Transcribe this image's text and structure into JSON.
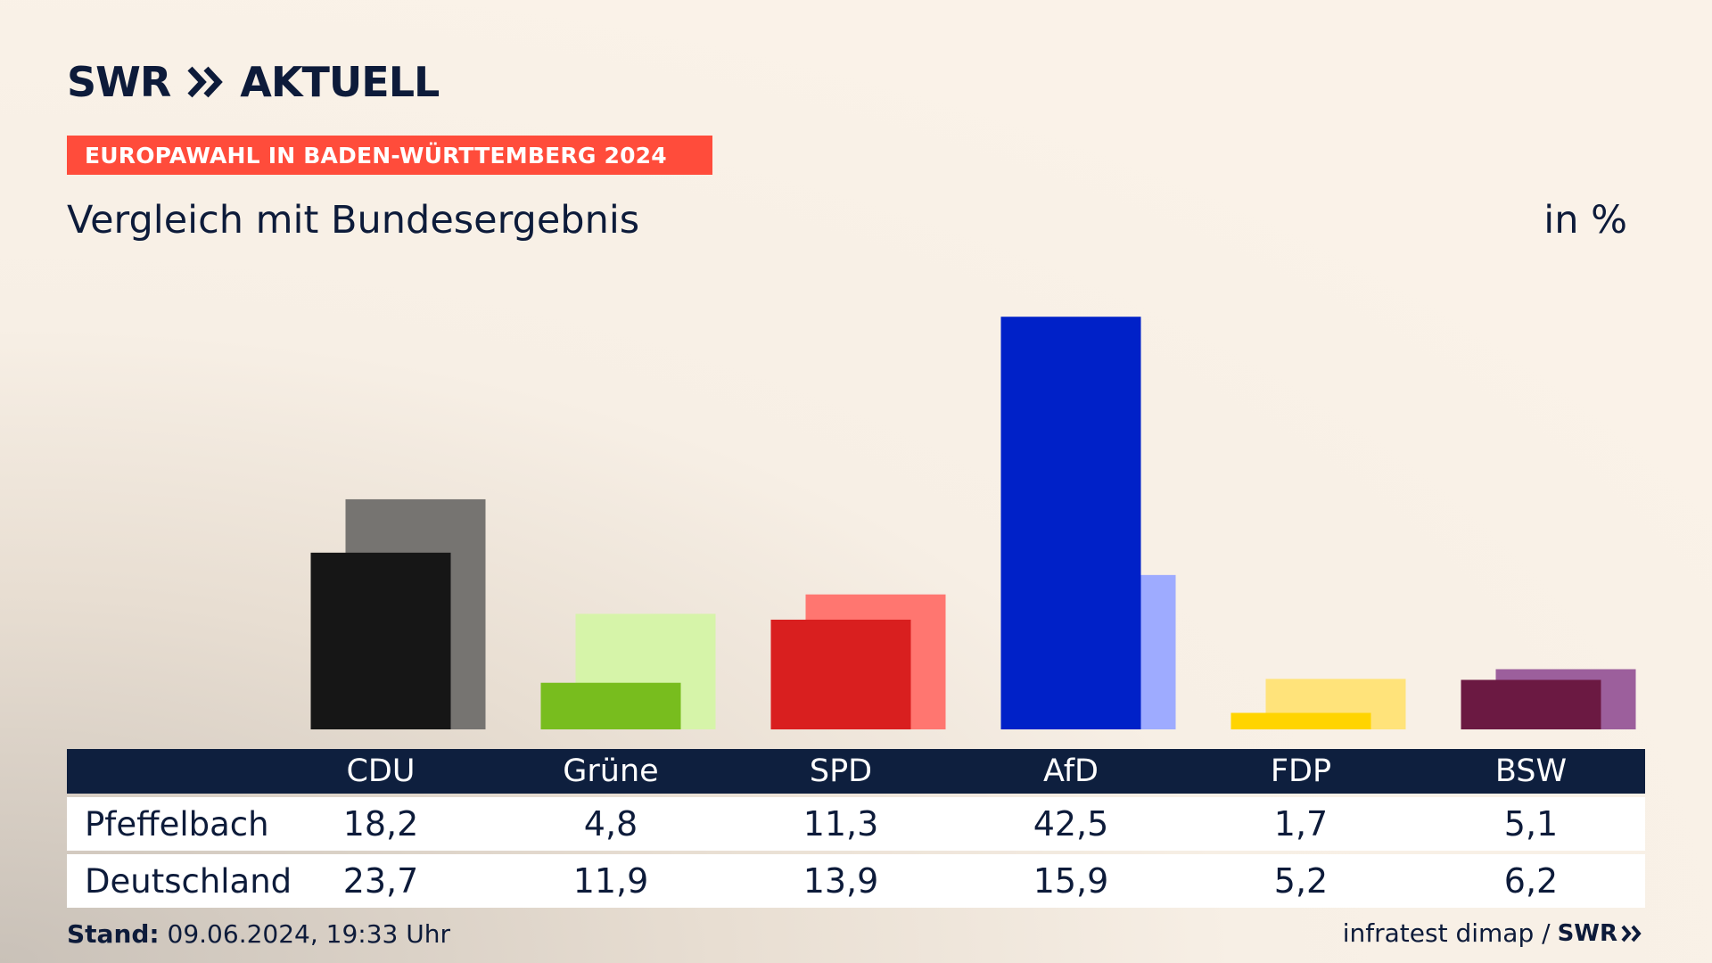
{
  "header": {
    "logo_left": "SWR",
    "logo_right": "AKTUELL",
    "badge": "EUROPAWAHL IN BADEN-WÜRTTEMBERG 2024",
    "subtitle": "Vergleich mit Bundesergebnis",
    "unit": "in %"
  },
  "table": {
    "rows": [
      {
        "label": "Pfeffelbach",
        "values": [
          "18,2",
          "4,8",
          "11,3",
          "42,5",
          "1,7",
          "5,1"
        ]
      },
      {
        "label": "Deutschland",
        "values": [
          "23,7",
          "11,9",
          "13,9",
          "15,9",
          "5,2",
          "6,2"
        ]
      }
    ]
  },
  "footer": {
    "stand_label": "Stand:",
    "stand_value": "09.06.2024, 19:33 Uhr",
    "source": "infratest dimap /",
    "logo": "SWR"
  },
  "chart_data": {
    "type": "bar",
    "categories": [
      "CDU",
      "Grüne",
      "SPD",
      "AfD",
      "FDP",
      "BSW"
    ],
    "series": [
      {
        "name": "Pfeffelbach",
        "values": [
          18.2,
          4.8,
          11.3,
          42.5,
          1.7,
          5.1
        ],
        "colors": [
          "#161616",
          "#78bd1e",
          "#d91f1f",
          "#0021c8",
          "#ffd400",
          "#6b1942"
        ]
      },
      {
        "name": "Deutschland",
        "values": [
          23.7,
          11.9,
          13.9,
          15.9,
          5.2,
          6.2
        ],
        "colors": [
          "#767471",
          "#d6f4a9",
          "#ff7670",
          "#9eabff",
          "#ffe37a",
          "#9c5f9c"
        ]
      }
    ],
    "ylim": [
      0,
      45
    ],
    "grid": false
  }
}
